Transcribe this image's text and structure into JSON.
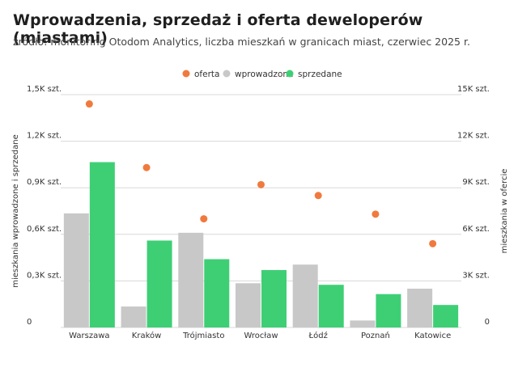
{
  "header": {
    "title": "Wprowadzenia, sprzedaż i oferta deweloperów (miastami)",
    "subtitle": "źródło: monitoring Otodom Analytics, liczba mieszkań w granicach miast, czerwiec 2025 r."
  },
  "colors": {
    "oferta": "#f07a3e",
    "wprowadzone": "#c8c8c8",
    "sprzedane": "#3ecf75",
    "grid": "#d8d8d8",
    "text": "#333333"
  },
  "chart_data": {
    "type": "bar",
    "title": "Wprowadzenia, sprzedaż i oferta deweloperów (miastami)",
    "subtitle": "źródło: monitoring Otodom Analytics, liczba mieszkań w granicach miast, czerwiec 2025 r.",
    "categories": [
      "Warszawa",
      "Kraków",
      "Trójmiasto",
      "Wrocław",
      "Łódź",
      "Poznań",
      "Katowice"
    ],
    "series": [
      {
        "name": "wprowadzone",
        "type": "bar",
        "axis": "left",
        "values": [
          735,
          135,
          610,
          285,
          405,
          45,
          250
        ]
      },
      {
        "name": "sprzedane",
        "type": "bar",
        "axis": "left",
        "values": [
          1065,
          560,
          440,
          370,
          275,
          215,
          145
        ]
      },
      {
        "name": "oferta",
        "type": "scatter",
        "axis": "right",
        "values": [
          14400,
          10300,
          7000,
          9200,
          8500,
          7300,
          5400
        ]
      }
    ],
    "legend": {
      "position": "top-center",
      "order": [
        "oferta",
        "wprowadzone",
        "sprzedane"
      ]
    },
    "ylabel": "mieszkania wprowadzone i sprzedane",
    "ylabel_right": "mieszkania w ofercie",
    "ylim": [
      0,
      1500
    ],
    "ylim_right": [
      0,
      15000
    ],
    "yticks": [
      {
        "value": 0,
        "label": "0"
      },
      {
        "value": 300,
        "label": "0,3K szt."
      },
      {
        "value": 600,
        "label": "0,6K szt."
      },
      {
        "value": 900,
        "label": "0,9K szt."
      },
      {
        "value": 1200,
        "label": "1,2K szt."
      },
      {
        "value": 1500,
        "label": "1,5K szt."
      }
    ],
    "yticks_right": [
      {
        "value": 0,
        "label": "0"
      },
      {
        "value": 3000,
        "label": "3K szt."
      },
      {
        "value": 6000,
        "label": "6K szt."
      },
      {
        "value": 9000,
        "label": "9K szt."
      },
      {
        "value": 12000,
        "label": "12K szt."
      },
      {
        "value": 15000,
        "label": "15K szt."
      }
    ],
    "grid": true
  }
}
